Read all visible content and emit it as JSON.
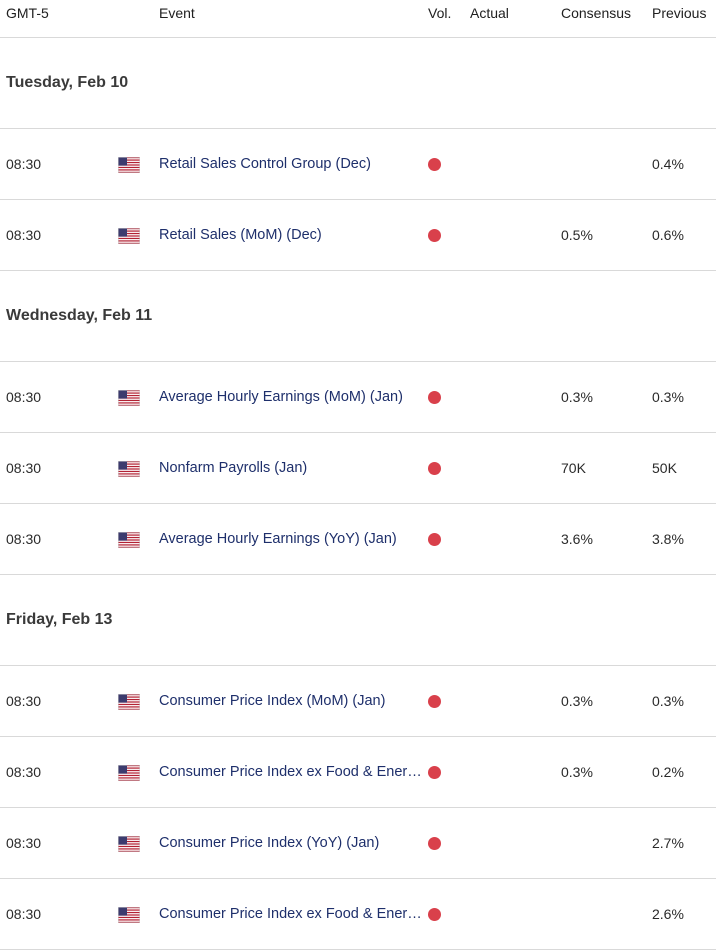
{
  "header": {
    "timezone": "GMT-5",
    "event": "Event",
    "vol": "Vol.",
    "actual": "Actual",
    "consensus": "Consensus",
    "previous": "Previous"
  },
  "colors": {
    "high_volatility": "#d9404b",
    "event_text": "#1e2f6b"
  },
  "days": [
    {
      "title": "Tuesday, Feb 10",
      "events": [
        {
          "time": "08:30",
          "flag": "us-flag-icon",
          "event": "Retail Sales Control Group (Dec)",
          "volatility": "high",
          "actual": "",
          "consensus": "",
          "previous": "0.4%"
        },
        {
          "time": "08:30",
          "flag": "us-flag-icon",
          "event": "Retail Sales (MoM) (Dec)",
          "volatility": "high",
          "actual": "",
          "consensus": "0.5%",
          "previous": "0.6%"
        }
      ]
    },
    {
      "title": "Wednesday, Feb 11",
      "events": [
        {
          "time": "08:30",
          "flag": "us-flag-icon",
          "event": "Average Hourly Earnings (MoM) (Jan)",
          "volatility": "high",
          "actual": "",
          "consensus": "0.3%",
          "previous": "0.3%"
        },
        {
          "time": "08:30",
          "flag": "us-flag-icon",
          "event": "Nonfarm Payrolls (Jan)",
          "volatility": "high",
          "actual": "",
          "consensus": "70K",
          "previous": "50K"
        },
        {
          "time": "08:30",
          "flag": "us-flag-icon",
          "event": "Average Hourly Earnings (YoY) (Jan)",
          "volatility": "high",
          "actual": "",
          "consensus": "3.6%",
          "previous": "3.8%"
        }
      ]
    },
    {
      "title": "Friday, Feb 13",
      "events": [
        {
          "time": "08:30",
          "flag": "us-flag-icon",
          "event": "Consumer Price Index (MoM) (Jan)",
          "volatility": "high",
          "actual": "",
          "consensus": "0.3%",
          "previous": "0.3%"
        },
        {
          "time": "08:30",
          "flag": "us-flag-icon",
          "event": "Consumer Price Index ex Food & Energy (MoM) (Jan)",
          "volatility": "high",
          "actual": "",
          "consensus": "0.3%",
          "previous": "0.2%"
        },
        {
          "time": "08:30",
          "flag": "us-flag-icon",
          "event": "Consumer Price Index (YoY) (Jan)",
          "volatility": "high",
          "actual": "",
          "consensus": "",
          "previous": "2.7%"
        },
        {
          "time": "08:30",
          "flag": "us-flag-icon",
          "event": "Consumer Price Index ex Food & Energy (YoY) (Jan)",
          "volatility": "high",
          "actual": "",
          "consensus": "",
          "previous": "2.6%"
        }
      ]
    }
  ]
}
